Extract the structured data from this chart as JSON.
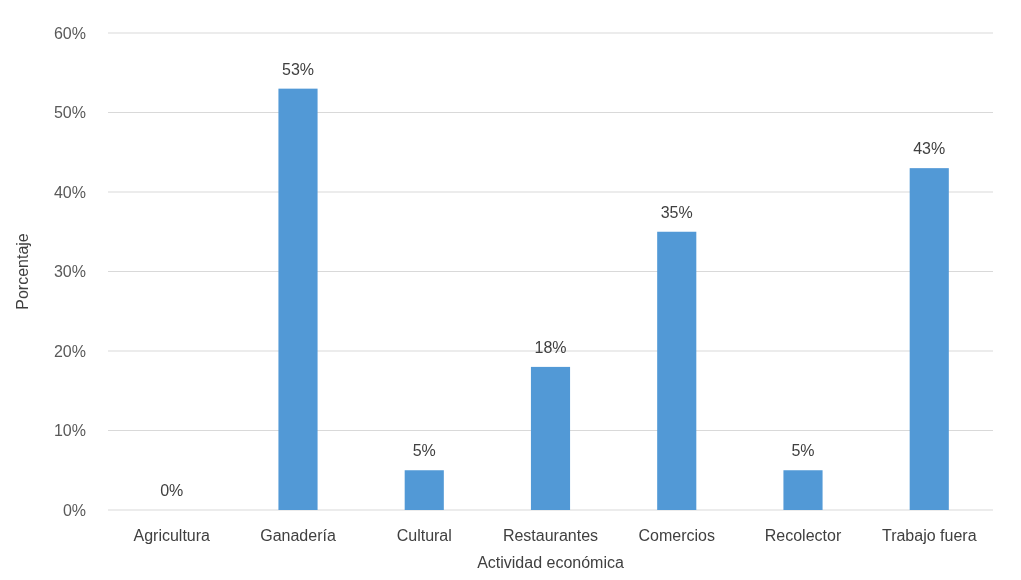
{
  "chart_data": {
    "type": "bar",
    "xlabel": "Actividad económica",
    "ylabel": "Porcentaje",
    "categories": [
      "Agricultura",
      "Ganadería",
      "Cultural",
      "Restaurantes",
      "Comercios",
      "Recolector",
      "Trabajo fuera"
    ],
    "values": [
      0,
      53,
      5,
      18,
      35,
      5,
      43
    ],
    "value_labels": [
      "0%",
      "53%",
      "5%",
      "18%",
      "35%",
      "5%",
      "43%"
    ],
    "color": "#5299d6",
    "ylim": [
      0,
      60
    ],
    "yticks": [
      {
        "value": 0,
        "label": "0%"
      },
      {
        "value": 10,
        "label": "10%"
      },
      {
        "value": 20,
        "label": "20%"
      },
      {
        "value": 30,
        "label": "30%"
      },
      {
        "value": 40,
        "label": "40%"
      },
      {
        "value": 50,
        "label": "50%"
      },
      {
        "value": 60,
        "label": "60%"
      }
    ],
    "grid": "y"
  }
}
